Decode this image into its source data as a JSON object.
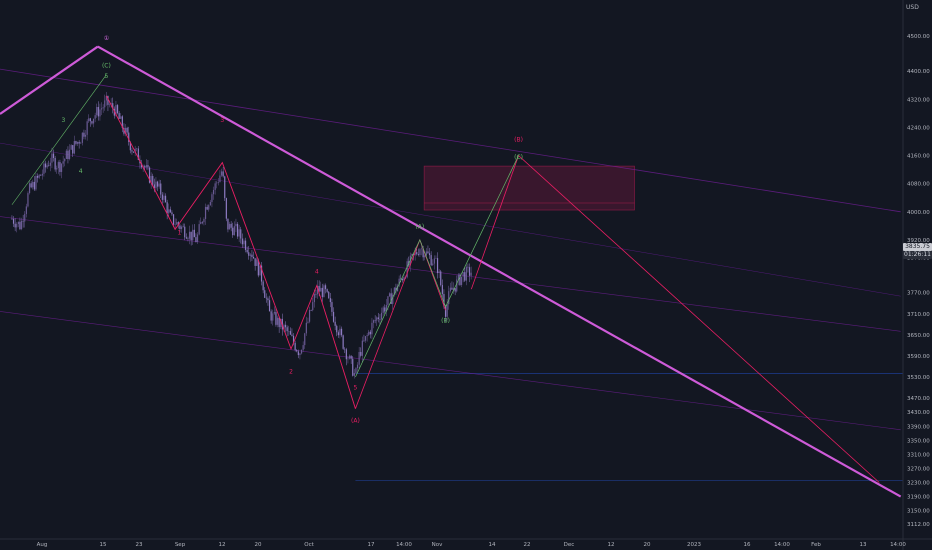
{
  "chart_data": {
    "type": "candlestick",
    "currency": "USD",
    "y_ticks": [
      4500,
      4400,
      4320,
      4240,
      4160,
      4080,
      4000,
      3920,
      3870,
      3770,
      3710,
      3650,
      3590,
      3530,
      3470,
      3430,
      3390,
      3350,
      3310,
      3270,
      3230,
      3190,
      3150,
      3112
    ],
    "x_ticks": [
      "Aug",
      "15",
      "23",
      "Sep",
      "12",
      "20",
      "Oct",
      "17",
      "14:00",
      "Nov",
      "14",
      "22",
      "Dec",
      "12",
      "20",
      "2023",
      "16",
      "14:00",
      "Feb",
      "13",
      "14:00"
    ],
    "last_price": "3835.75",
    "countdown": "01:26:11",
    "wave_labels": [
      {
        "text": "①",
        "tone": "purple"
      },
      {
        "text": "(C)",
        "tone": "green"
      },
      {
        "text": "5",
        "tone": "green"
      },
      {
        "text": "3",
        "tone": "green"
      },
      {
        "text": "4",
        "tone": "green"
      },
      {
        "text": "1",
        "tone": "red"
      },
      {
        "text": "3",
        "tone": "red"
      },
      {
        "text": "2",
        "tone": "red"
      },
      {
        "text": "4",
        "tone": "red"
      },
      {
        "text": "5",
        "tone": "red"
      },
      {
        "text": "(A)",
        "tone": "red"
      },
      {
        "text": "(A)",
        "tone": "green"
      },
      {
        "text": "(B)",
        "tone": "green"
      },
      {
        "text": "(B)",
        "tone": "red"
      },
      {
        "text": "(C)",
        "tone": "green"
      }
    ],
    "price_path": [
      [
        "Jul 25",
        3980
      ],
      [
        "Jul 27",
        3960
      ],
      [
        "Jul 29",
        4060
      ],
      [
        "Aug 1",
        4110
      ],
      [
        "Aug 3",
        4150
      ],
      [
        "Aug 5",
        4130
      ],
      [
        "Aug 8",
        4180
      ],
      [
        "Aug 10",
        4210
      ],
      [
        "Aug 12",
        4260
      ],
      [
        "Aug 16",
        4310
      ],
      [
        "Aug 18",
        4290
      ],
      [
        "Aug 22",
        4180
      ],
      [
        "Aug 24",
        4150
      ],
      [
        "Aug 26",
        4100
      ],
      [
        "Aug 29",
        4050
      ],
      [
        "Aug 31",
        3980
      ],
      [
        "Sep 2",
        3960
      ],
      [
        "Sep 6",
        3920
      ],
      [
        "Sep 8",
        4010
      ],
      [
        "Sep 12",
        4120
      ],
      [
        "Sep 13",
        3960
      ],
      [
        "Sep 15",
        3950
      ],
      [
        "Sep 19",
        3880
      ],
      [
        "Sep 21",
        3820
      ],
      [
        "Sep 23",
        3710
      ],
      [
        "Sep 27",
        3660
      ],
      [
        "Sep 30",
        3600
      ],
      [
        "Oct 4",
        3780
      ],
      [
        "Oct 6",
        3770
      ],
      [
        "Oct 10",
        3630
      ],
      [
        "Oct 13",
        3530
      ],
      [
        "Oct 14",
        3600
      ],
      [
        "Oct 17",
        3680
      ],
      [
        "Oct 21",
        3750
      ],
      [
        "Oct 25",
        3840
      ],
      [
        "Oct 28",
        3900
      ],
      [
        "Nov 1",
        3850
      ],
      [
        "Nov 3",
        3720
      ],
      [
        "Nov 4",
        3770
      ],
      [
        "Nov 7",
        3820
      ],
      [
        "Nov 9",
        3830
      ]
    ],
    "scenario_path": [
      [
        "Nov 9",
        3780
      ],
      [
        "Nov 20",
        4160
      ],
      [
        "Feb 12",
        3230
      ]
    ],
    "green_projection": [
      [
        "Oct 13",
        3530
      ],
      [
        "Oct 28",
        3920
      ],
      [
        "Nov 3",
        3730
      ],
      [
        "Nov 20",
        4160
      ]
    ],
    "major_downtrend": [
      [
        "Aug 14",
        4470
      ],
      [
        "Feb 17",
        3190
      ]
    ],
    "resistance_zone": {
      "from": "Oct 29",
      "to": "Dec 17",
      "top": 4130,
      "bottom": 4005,
      "mid": 4025
    },
    "horizontal_levels": [
      3540,
      3235
    ]
  }
}
